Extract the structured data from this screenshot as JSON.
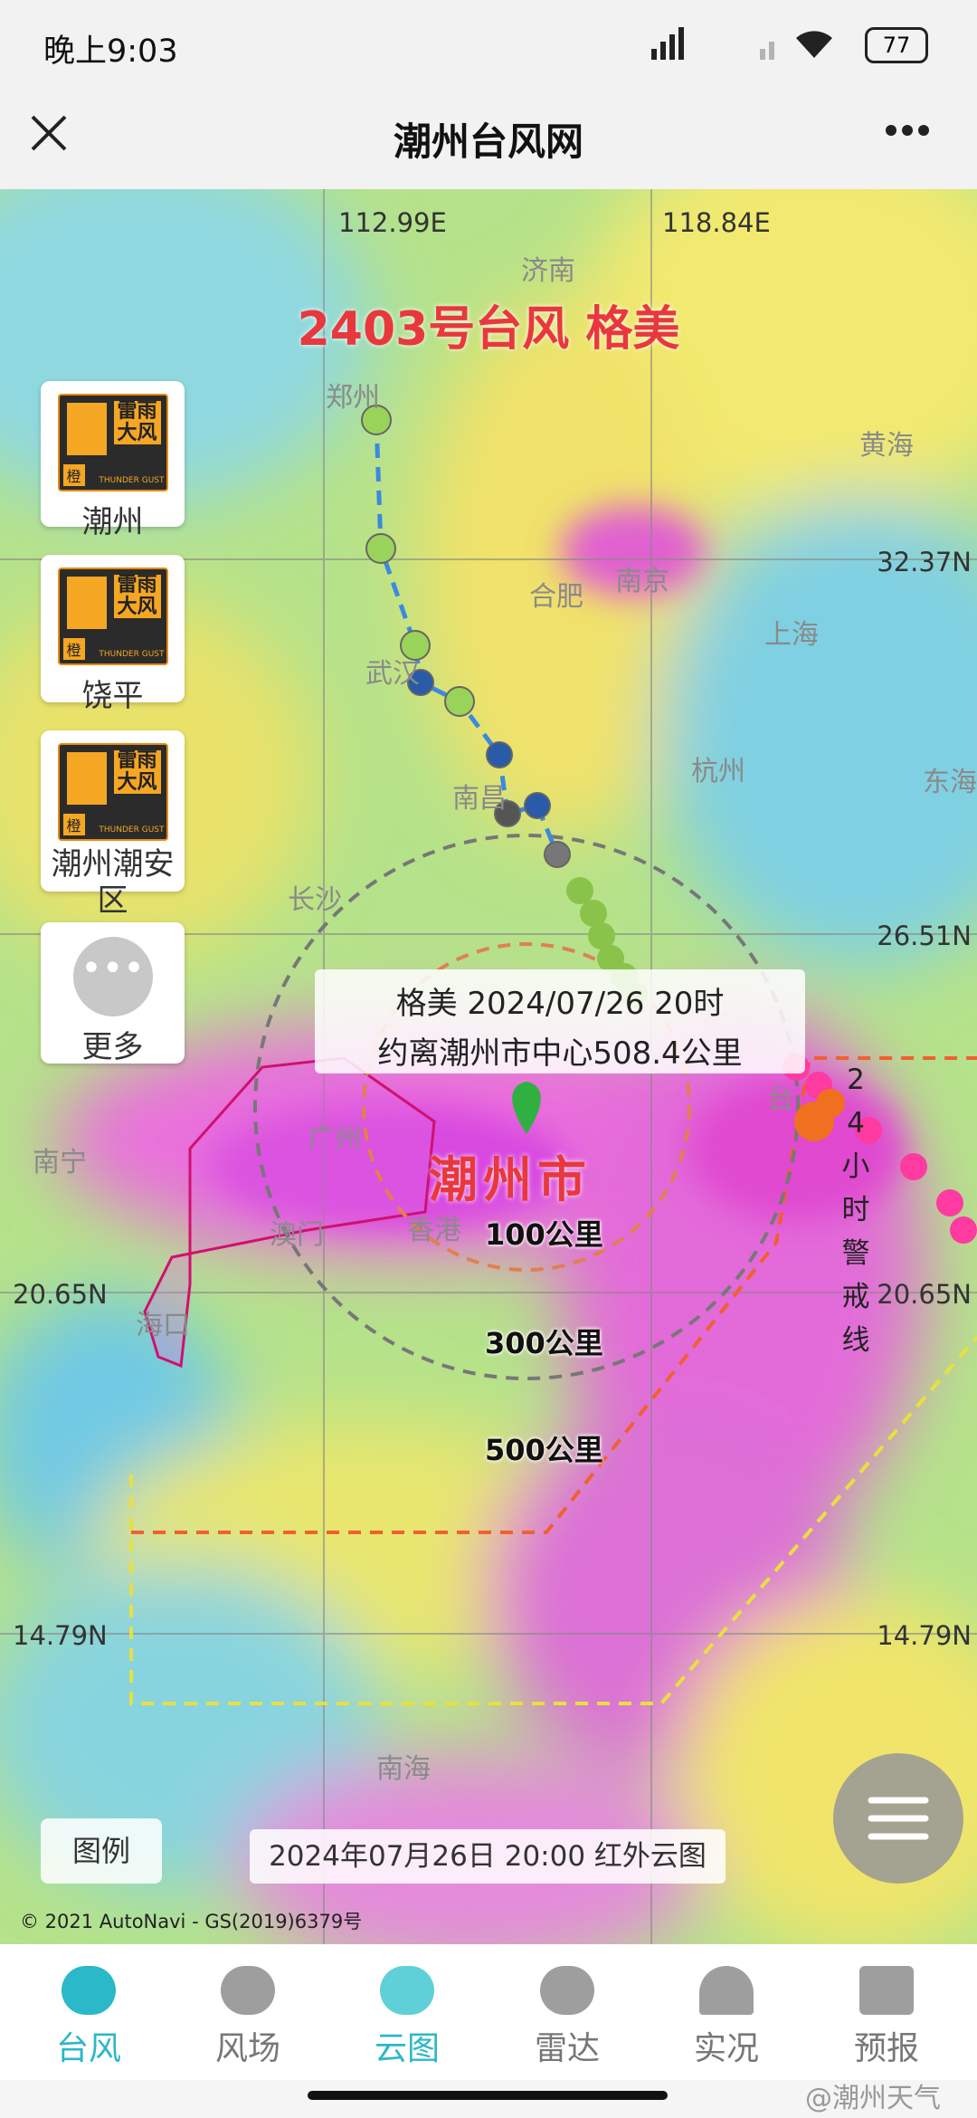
{
  "status_bar": {
    "time": "晚上9:03",
    "battery": "77"
  },
  "header": {
    "title": "潮州台风网"
  },
  "map": {
    "typhoon_title": "2403号台风 格美",
    "lon_labels": [
      "112.99E",
      "118.84E"
    ],
    "lat_labels": [
      "32.37N",
      "26.51N",
      "20.65N",
      "14.79N",
      "20.65N",
      "14.79N"
    ],
    "places": [
      "郑州",
      "济南",
      "合肥",
      "南京",
      "黄海",
      "上海",
      "武汉",
      "杭州",
      "南昌",
      "长沙",
      "东海",
      "南宁",
      "广州",
      "澳门",
      "香港",
      "海口",
      "南海",
      "台"
    ],
    "info": {
      "line1": "格美 2024/07/26 20时",
      "line2": "约离潮州市中心508.4公里"
    },
    "city": "潮州市",
    "rings": [
      "100公里",
      "300公里",
      "500公里"
    ],
    "warning_line": "24小时警戒线",
    "legend": "图例",
    "time_label": "2024年07月26日 20:00 红外云图",
    "copyright": "© 2021 AutoNavi - GS(2019)6379号"
  },
  "warnings": [
    {
      "name": "雷雨大风",
      "level": "橙",
      "en": "THUNDER GUST",
      "place": "潮州"
    },
    {
      "name": "雷雨大风",
      "level": "橙",
      "en": "THUNDER GUST",
      "place": "饶平"
    },
    {
      "name": "雷雨大风",
      "level": "橙",
      "en": "THUNDER GUST",
      "place": "潮州潮安区"
    }
  ],
  "more": "更多",
  "nav": [
    "台风",
    "风场",
    "云图",
    "雷达",
    "实况",
    "预报"
  ],
  "watermark": "@潮州天气"
}
